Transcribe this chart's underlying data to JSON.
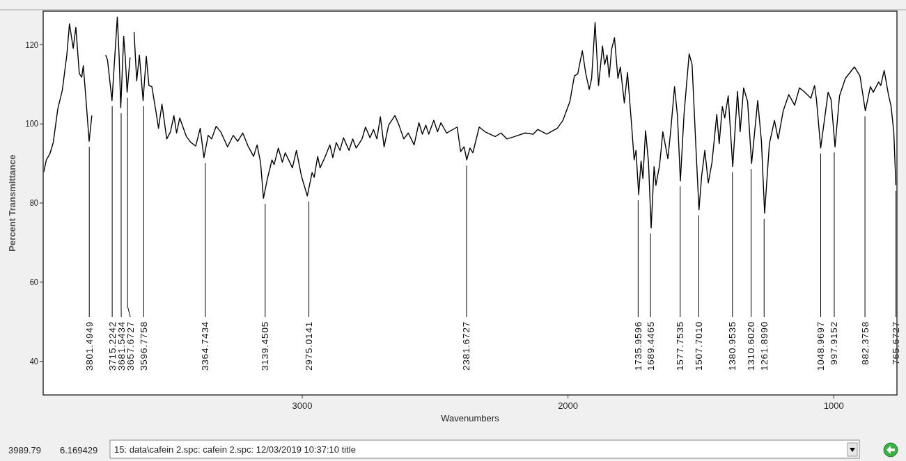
{
  "chart_data": {
    "type": "line",
    "xlabel": "Wavenumbers",
    "ylabel": "Percent Transmittance",
    "xlim": [
      3975,
      762
    ],
    "ylim": [
      31.5,
      128.5
    ],
    "xticks": [
      3000,
      2000,
      1000
    ],
    "yticks": [
      40,
      60,
      80,
      100,
      120
    ],
    "x": [
      3973,
      3963,
      3950,
      3937,
      3920,
      3903,
      3886,
      3876,
      3862,
      3852,
      3839,
      3830,
      3824,
      3816,
      3802,
      3792,
      3776,
      3773,
      3751,
      3740,
      3733,
      3716,
      3696,
      3689,
      3683,
      3672,
      3666,
      3659,
      3648,
      3639,
      3633,
      3623,
      3613,
      3599,
      3587,
      3577,
      3566,
      3551,
      3541,
      3528,
      3510,
      3496,
      3483,
      3473,
      3461,
      3436,
      3419,
      3401,
      3384,
      3370,
      3354,
      3341,
      3324,
      3307,
      3281,
      3260,
      3243,
      3224,
      3204,
      3183,
      3170,
      3157,
      3146,
      3131,
      3114,
      3106,
      3090,
      3075,
      3064,
      3037,
      3022,
      3003,
      2981,
      2963,
      2955,
      2942,
      2933,
      2915,
      2896,
      2885,
      2872,
      2858,
      2845,
      2824,
      2810,
      2797,
      2775,
      2762,
      2745,
      2732,
      2719,
      2706,
      2692,
      2675,
      2651,
      2636,
      2618,
      2601,
      2579,
      2561,
      2548,
      2535,
      2524,
      2505,
      2491,
      2478,
      2457,
      2417,
      2404,
      2391,
      2381,
      2369,
      2358,
      2334,
      2312,
      2274,
      2252,
      2230,
      2201,
      2161,
      2131,
      2114,
      2080,
      2040,
      2019,
      1993,
      1976,
      1963,
      1946,
      1933,
      1920,
      1911,
      1898,
      1885,
      1870,
      1862,
      1853,
      1845,
      1836,
      1825,
      1812,
      1803,
      1788,
      1776,
      1760,
      1751,
      1744,
      1734,
      1725,
      1718,
      1708,
      1697,
      1687,
      1676,
      1669,
      1655,
      1643,
      1624,
      1613,
      1599,
      1588,
      1577,
      1563,
      1544,
      1533,
      1518,
      1507,
      1497,
      1485,
      1472,
      1458,
      1440,
      1431,
      1419,
      1410,
      1397,
      1380,
      1362,
      1352,
      1339,
      1324,
      1309,
      1286,
      1272,
      1260,
      1242,
      1223,
      1209,
      1190,
      1169,
      1147,
      1129,
      1112,
      1086,
      1072,
      1065,
      1049,
      1021,
      1010,
      995,
      978,
      956,
      922,
      901,
      881,
      862,
      851,
      831,
      823,
      810,
      794,
      784,
      774,
      766
    ],
    "series": [
      {
        "color": "#000000",
        "values": [
          87.8,
          90.9,
          92.4,
          95.3,
          103.8,
          108.5,
          117.4,
          125.3,
          119.1,
          124.4,
          112.7,
          111.8,
          114.7,
          108.0,
          95.6,
          102.1,
          null,
          null,
          null,
          117.4,
          116.2,
          105.9,
          127.0,
          116.8,
          104.1,
          122.1,
          116.8,
          108.0,
          116.8,
          null,
          123.2,
          110.9,
          117.4,
          105.9,
          117.1,
          109.7,
          109.4,
          103.3,
          98.9,
          105.0,
          96.2,
          98.0,
          102.1,
          97.7,
          101.5,
          96.8,
          95.3,
          94.4,
          98.9,
          91.5,
          97.1,
          96.2,
          99.4,
          98.0,
          94.2,
          97.1,
          95.6,
          97.7,
          94.4,
          91.8,
          94.7,
          90.3,
          81.2,
          86.2,
          90.9,
          89.7,
          93.9,
          90.3,
          92.7,
          88.9,
          93.3,
          86.8,
          81.8,
          87.7,
          86.5,
          91.8,
          88.9,
          91.5,
          94.7,
          91.5,
          95.3,
          93.3,
          96.5,
          93.3,
          96.2,
          93.9,
          96.2,
          99.2,
          96.5,
          98.6,
          96.2,
          101.8,
          94.2,
          99.7,
          102.1,
          99.7,
          96.2,
          97.7,
          94.7,
          100.3,
          97.4,
          99.7,
          97.4,
          100.9,
          98.0,
          100.3,
          97.7,
          99.2,
          93.0,
          94.2,
          90.9,
          93.9,
          92.7,
          99.2,
          98.0,
          96.8,
          97.7,
          96.2,
          96.8,
          97.7,
          97.4,
          98.6,
          97.4,
          98.9,
          100.9,
          105.6,
          112.1,
          112.7,
          118.5,
          112.7,
          108.7,
          111.5,
          125.6,
          109.7,
          119.7,
          115.0,
          117.4,
          111.8,
          118.8,
          121.8,
          111.5,
          114.4,
          105.3,
          113.0,
          99.2,
          90.9,
          93.3,
          82.1,
          90.6,
          86.2,
          98.3,
          90.3,
          73.7,
          89.2,
          84.5,
          89.7,
          98.0,
          91.2,
          98.6,
          109.4,
          102.1,
          85.6,
          102.7,
          117.7,
          115.0,
          93.3,
          78.3,
          86.8,
          93.3,
          85.1,
          90.3,
          102.4,
          95.0,
          104.4,
          101.5,
          107.1,
          89.2,
          108.2,
          98.0,
          109.1,
          105.6,
          90.0,
          105.9,
          95.6,
          77.4,
          95.0,
          100.9,
          96.2,
          103.3,
          107.4,
          104.7,
          109.1,
          108.2,
          106.5,
          109.7,
          106.2,
          93.9,
          108.0,
          106.2,
          94.2,
          107.1,
          111.5,
          114.4,
          112.1,
          103.3,
          109.4,
          108.0,
          110.6,
          109.7,
          113.5,
          107.4,
          104.4,
          98.0,
          84.5
        ]
      }
    ],
    "annotations": [
      {
        "text": "3801.4949",
        "x": 3801.4949,
        "y": 95.6
      },
      {
        "text": "3715.2242",
        "x": 3715.2242,
        "y": 105.9
      },
      {
        "text": "3681.5434",
        "x": 3681.5434,
        "y": 104.1
      },
      {
        "text": "3657.6727",
        "x": 3657.6727,
        "y": 108.0
      },
      {
        "text": "3596.7758",
        "x": 3596.7758,
        "y": 105.9
      },
      {
        "text": "3364.7434",
        "x": 3364.7434,
        "y": 91.5
      },
      {
        "text": "3139.4505",
        "x": 3139.4505,
        "y": 81.2
      },
      {
        "text": "2975.0141",
        "x": 2975.0141,
        "y": 81.8
      },
      {
        "text": "2381.6727",
        "x": 2381.6727,
        "y": 90.9
      },
      {
        "text": "1735.9596",
        "x": 1735.9596,
        "y": 82.1
      },
      {
        "text": "1689.4465",
        "x": 1689.4465,
        "y": 73.7
      },
      {
        "text": "1577.7535",
        "x": 1577.7535,
        "y": 85.6
      },
      {
        "text": "1507.7010",
        "x": 1507.701,
        "y": 78.3
      },
      {
        "text": "1380.9535",
        "x": 1380.9535,
        "y": 89.2
      },
      {
        "text": "1310.6020",
        "x": 1310.602,
        "y": 90.0
      },
      {
        "text": "1261.8990",
        "x": 1261.899,
        "y": 77.4
      },
      {
        "text": "1048.9697",
        "x": 1048.9697,
        "y": 93.9
      },
      {
        "text": "997.9152",
        "x": 997.9152,
        "y": 94.2
      },
      {
        "text": "882.3758",
        "x": 882.3758,
        "y": 103.3
      },
      {
        "text": "765.6727",
        "x": 765.6727,
        "y": 84.5
      },
      "3989.79",
      "6.169429",
      "15: data\\cafein 2.spc: cafein 2.spc: 12/03/2019 10:37:10 title"
    ]
  }
}
